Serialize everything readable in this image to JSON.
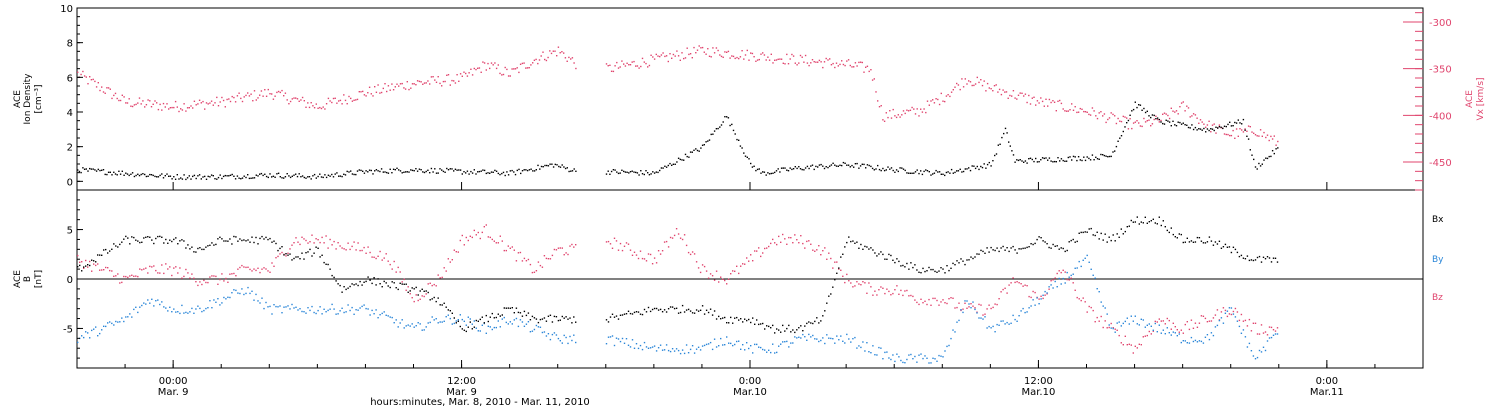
{
  "colors": {
    "black": "#000000",
    "pink": "#e0456e",
    "blue": "#2a86d8"
  },
  "time_axis": {
    "label": "hours:minutes, Mar. 8, 2010 - Mar. 11, 2010",
    "ticks": [
      {
        "time": "00:00",
        "date": "Mar. 9",
        "hours": 24
      },
      {
        "time": "12:00",
        "date": "Mar. 9",
        "hours": 36
      },
      {
        "time": "0:00",
        "date": "Mar.10",
        "hours": 48
      },
      {
        "time": "12:00",
        "date": "Mar.10",
        "hours": 60
      },
      {
        "time": "0:00",
        "date": "Mar.11",
        "hours": 72
      }
    ],
    "range_hours": [
      20,
      76
    ]
  },
  "top_panel": {
    "left_axis": {
      "label_line1": "ACE",
      "label_line2": "Ion Density",
      "label_line3": "[cm⁻³]",
      "ticks": [
        "0",
        "2",
        "4",
        "6",
        "8",
        "10"
      ],
      "range": [
        -0.5,
        10
      ]
    },
    "right_axis": {
      "label_line1": "ACE",
      "label_line2": "Vx [km/s]",
      "ticks": [
        "-300",
        "-350",
        "-400",
        "-450"
      ],
      "range": [
        -480,
        -285
      ]
    }
  },
  "bottom_panel": {
    "left_axis": {
      "label_line1": "ACE",
      "label_line2": "B",
      "label_line3": "[nT]",
      "ticks": [
        "5",
        "0",
        "-5"
      ],
      "range": [
        -9,
        9
      ]
    },
    "legend": [
      {
        "label": "Bx",
        "color": "#000000"
      },
      {
        "label": "By",
        "color": "#2a86d8"
      },
      {
        "label": "Bz",
        "color": "#e0456e"
      }
    ]
  },
  "chart_data": {
    "type": "scatter",
    "x_unit": "hours since Mar. 8, 2010 00:00",
    "xlim": [
      20,
      76
    ],
    "panels": [
      {
        "name": "top",
        "series": [
          {
            "name": "Ion Density",
            "axis": "left",
            "color": "#000000",
            "ylim": [
              -0.5,
              10
            ],
            "points": [
              [
                20,
                0.7
              ],
              [
                22,
                0.5
              ],
              [
                24,
                0.3
              ],
              [
                26,
                0.3
              ],
              [
                28,
                0.4
              ],
              [
                30,
                0.3
              ],
              [
                32,
                0.6
              ],
              [
                34,
                0.7
              ],
              [
                36,
                0.6
              ],
              [
                38,
                0.5
              ],
              [
                39.8,
                1.0
              ],
              [
                40.8,
                0.6
              ],
              [
                42,
                0.6
              ],
              [
                44,
                0.5
              ],
              [
                46,
                2.0
              ],
              [
                47,
                3.8
              ],
              [
                48,
                1.0
              ],
              [
                48.5,
                0.5
              ],
              [
                50,
                0.8
              ],
              [
                52,
                1.0
              ],
              [
                54,
                0.7
              ],
              [
                56,
                0.5
              ],
              [
                58,
                1.0
              ],
              [
                58.6,
                3.0
              ],
              [
                59,
                1.2
              ],
              [
                62,
                1.4
              ],
              [
                63,
                1.5
              ],
              [
                64,
                4.5
              ],
              [
                65,
                3.5
              ],
              [
                67,
                3.0
              ],
              [
                68.5,
                3.5
              ],
              [
                69,
                0.8
              ],
              [
                70,
                2.0
              ]
            ]
          },
          {
            "name": "Vx",
            "axis": "right",
            "color": "#e0456e",
            "ylim": [
              -480,
              -285
            ],
            "points": [
              [
                20,
                -355
              ],
              [
                21,
                -370
              ],
              [
                22,
                -385
              ],
              [
                24,
                -390
              ],
              [
                26,
                -385
              ],
              [
                28,
                -375
              ],
              [
                30,
                -390
              ],
              [
                32,
                -375
              ],
              [
                34,
                -365
              ],
              [
                36,
                -360
              ],
              [
                37,
                -345
              ],
              [
                38,
                -355
              ],
              [
                39,
                -340
              ],
              [
                40,
                -330
              ],
              [
                40.8,
                -345
              ],
              [
                41,
                -350
              ],
              [
                42,
                -350
              ],
              [
                44,
                -340
              ],
              [
                46,
                -330
              ],
              [
                48,
                -335
              ],
              [
                50,
                -340
              ],
              [
                52,
                -345
              ],
              [
                53,
                -350
              ],
              [
                53.5,
                -400
              ],
              [
                55,
                -395
              ],
              [
                56,
                -380
              ],
              [
                57,
                -360
              ],
              [
                58,
                -370
              ],
              [
                60,
                -385
              ],
              [
                62,
                -395
              ],
              [
                64,
                -410
              ],
              [
                65,
                -405
              ],
              [
                66,
                -390
              ],
              [
                67,
                -410
              ],
              [
                68,
                -420
              ],
              [
                69,
                -415
              ],
              [
                70,
                -430
              ]
            ]
          }
        ]
      },
      {
        "name": "bottom",
        "series": [
          {
            "name": "Bx",
            "color": "#000000",
            "ylim": [
              -9,
              9
            ],
            "points": [
              [
                20,
                1
              ],
              [
                22,
                4
              ],
              [
                24,
                4
              ],
              [
                25,
                3
              ],
              [
                26,
                4
              ],
              [
                28,
                4
              ],
              [
                29,
                2
              ],
              [
                30,
                3
              ],
              [
                31,
                -1
              ],
              [
                32,
                0
              ],
              [
                34,
                -1
              ],
              [
                35,
                -2
              ],
              [
                36,
                -5
              ],
              [
                37,
                -4
              ],
              [
                38,
                -3
              ],
              [
                39,
                -4
              ],
              [
                40,
                -4
              ],
              [
                40.8,
                -4
              ],
              [
                42,
                -4
              ],
              [
                44,
                -3
              ],
              [
                46,
                -3
              ],
              [
                47,
                -4
              ],
              [
                48,
                -4
              ],
              [
                49,
                -5
              ],
              [
                50,
                -5
              ],
              [
                51,
                -4
              ],
              [
                52,
                4
              ],
              [
                53,
                3
              ],
              [
                54,
                2
              ],
              [
                55,
                1
              ],
              [
                56,
                1
              ],
              [
                57,
                2
              ],
              [
                58,
                3
              ],
              [
                59,
                3
              ],
              [
                60,
                4
              ],
              [
                61,
                3
              ],
              [
                62,
                5
              ],
              [
                63,
                4
              ],
              [
                64,
                6
              ],
              [
                65,
                6
              ],
              [
                66,
                4
              ],
              [
                67,
                4
              ],
              [
                68,
                3
              ],
              [
                69,
                2
              ],
              [
                70,
                2
              ]
            ]
          },
          {
            "name": "By",
            "color": "#2a86d8",
            "ylim": [
              -9,
              9
            ],
            "points": [
              [
                20,
                -6
              ],
              [
                22,
                -4
              ],
              [
                23,
                -2
              ],
              [
                24,
                -3
              ],
              [
                25,
                -3
              ],
              [
                26,
                -2
              ],
              [
                27,
                -1
              ],
              [
                28,
                -3
              ],
              [
                30,
                -3
              ],
              [
                32,
                -3
              ],
              [
                33,
                -4
              ],
              [
                34,
                -5
              ],
              [
                35,
                -4
              ],
              [
                36,
                -4
              ],
              [
                37,
                -5
              ],
              [
                38,
                -4
              ],
              [
                39,
                -5
              ],
              [
                40,
                -6
              ],
              [
                40.8,
                -6
              ],
              [
                42,
                -6
              ],
              [
                44,
                -7
              ],
              [
                46,
                -7
              ],
              [
                47,
                -6
              ],
              [
                48,
                -7
              ],
              [
                49,
                -7
              ],
              [
                50,
                -6
              ],
              [
                51,
                -6
              ],
              [
                52,
                -6
              ],
              [
                53,
                -7
              ],
              [
                54,
                -8
              ],
              [
                55,
                -8
              ],
              [
                56,
                -8
              ],
              [
                57,
                -2
              ],
              [
                58,
                -5
              ],
              [
                59,
                -4
              ],
              [
                60,
                -2
              ],
              [
                61,
                0
              ],
              [
                62,
                2
              ],
              [
                63,
                -5
              ],
              [
                64,
                -4
              ],
              [
                65,
                -5
              ],
              [
                66,
                -6
              ],
              [
                67,
                -6
              ],
              [
                68,
                -3
              ],
              [
                69,
                -8
              ],
              [
                70,
                -5
              ]
            ]
          },
          {
            "name": "Bz",
            "color": "#e0456e",
            "ylim": [
              -9,
              9
            ],
            "points": [
              [
                20,
                2
              ],
              [
                22,
                0
              ],
              [
                23,
                1
              ],
              [
                24,
                1
              ],
              [
                25,
                0
              ],
              [
                26,
                0
              ],
              [
                27,
                1
              ],
              [
                28,
                1
              ],
              [
                29,
                4
              ],
              [
                30,
                4
              ],
              [
                32,
                3
              ],
              [
                33,
                2
              ],
              [
                34,
                -2
              ],
              [
                35,
                0
              ],
              [
                36,
                4
              ],
              [
                37,
                5
              ],
              [
                38,
                3
              ],
              [
                39,
                1
              ],
              [
                40,
                3
              ],
              [
                40.8,
                3
              ],
              [
                42,
                4
              ],
              [
                44,
                2
              ],
              [
                45,
                5
              ],
              [
                46,
                1
              ],
              [
                47,
                0
              ],
              [
                48,
                2
              ],
              [
                49,
                4
              ],
              [
                50,
                4
              ],
              [
                51,
                3
              ],
              [
                52,
                0
              ],
              [
                53,
                -1
              ],
              [
                54,
                -1
              ],
              [
                55,
                -2
              ],
              [
                56,
                -2
              ],
              [
                57,
                -3
              ],
              [
                58,
                -3
              ],
              [
                59,
                0
              ],
              [
                60,
                -2
              ],
              [
                61,
                1
              ],
              [
                62,
                -3
              ],
              [
                63,
                -5
              ],
              [
                64,
                -7
              ],
              [
                65,
                -4
              ],
              [
                66,
                -5
              ],
              [
                67,
                -4
              ],
              [
                68,
                -3
              ],
              [
                69,
                -5
              ],
              [
                70,
                -5
              ]
            ]
          }
        ]
      }
    ],
    "data_gap_hours": [
      40.8,
      42.0
    ]
  }
}
